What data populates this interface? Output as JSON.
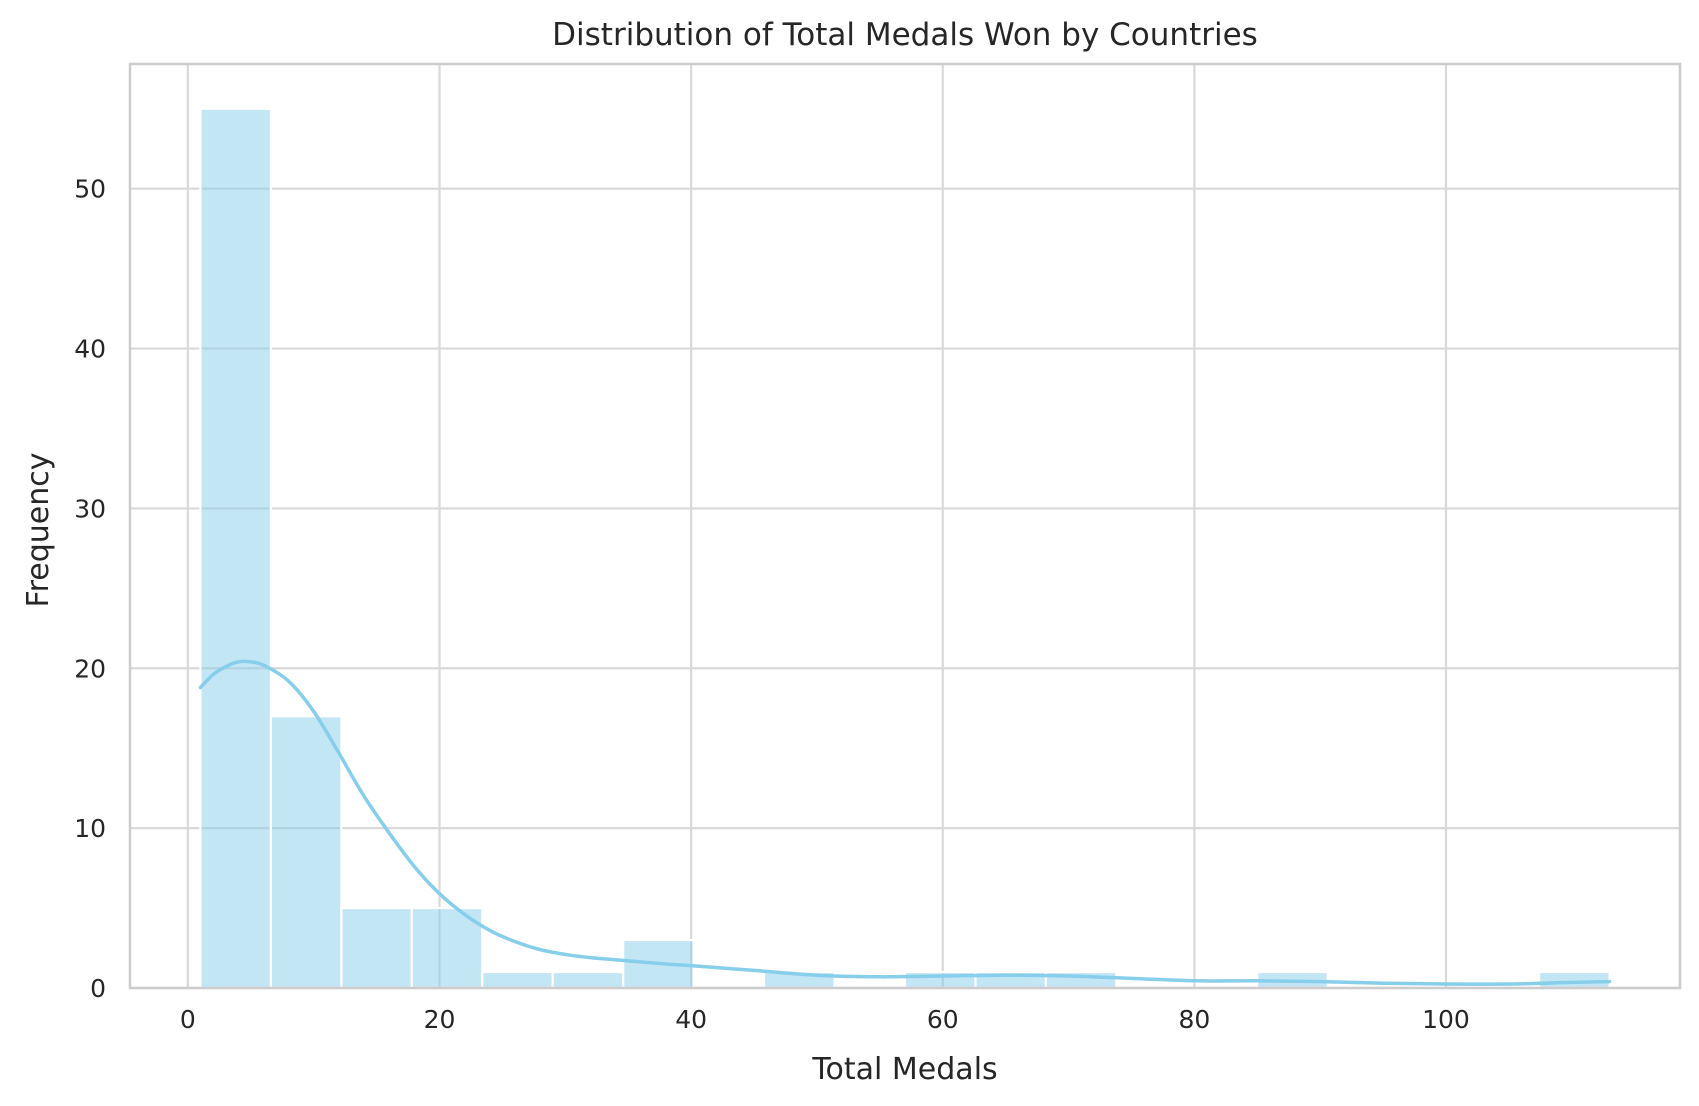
{
  "chart_data": {
    "type": "bar",
    "title": "Distribution of Total Medals Won by Countries",
    "xlabel": "Total Medals",
    "ylabel": "Frequency",
    "xlim": [
      -4.6,
      118.6
    ],
    "ylim": [
      0,
      57.8
    ],
    "xticks": [
      0,
      20,
      40,
      60,
      80,
      100
    ],
    "yticks": [
      0,
      10,
      20,
      30,
      40,
      50
    ],
    "grid": true,
    "bins": [
      {
        "x0": 1.0,
        "x1": 6.6,
        "count": 55
      },
      {
        "x0": 6.6,
        "x1": 12.2,
        "count": 17
      },
      {
        "x0": 12.2,
        "x1": 17.8,
        "count": 5
      },
      {
        "x0": 17.8,
        "x1": 23.4,
        "count": 5
      },
      {
        "x0": 23.4,
        "x1": 29.0,
        "count": 1
      },
      {
        "x0": 29.0,
        "x1": 34.6,
        "count": 1
      },
      {
        "x0": 34.6,
        "x1": 40.2,
        "count": 3
      },
      {
        "x0": 40.2,
        "x1": 45.8,
        "count": 0
      },
      {
        "x0": 45.8,
        "x1": 51.4,
        "count": 1
      },
      {
        "x0": 51.4,
        "x1": 57.0,
        "count": 0
      },
      {
        "x0": 57.0,
        "x1": 62.6,
        "count": 1
      },
      {
        "x0": 62.6,
        "x1": 68.2,
        "count": 1
      },
      {
        "x0": 68.2,
        "x1": 73.8,
        "count": 1
      },
      {
        "x0": 73.8,
        "x1": 79.4,
        "count": 0
      },
      {
        "x0": 79.4,
        "x1": 85.0,
        "count": 0
      },
      {
        "x0": 85.0,
        "x1": 90.6,
        "count": 1
      },
      {
        "x0": 90.6,
        "x1": 96.2,
        "count": 0
      },
      {
        "x0": 96.2,
        "x1": 101.8,
        "count": 0
      },
      {
        "x0": 101.8,
        "x1": 107.4,
        "count": 0
      },
      {
        "x0": 107.4,
        "x1": 113.0,
        "count": 1
      }
    ],
    "kde": {
      "x": [
        1,
        2,
        3,
        4,
        5,
        6,
        8,
        10,
        12,
        14,
        16,
        18,
        20,
        22,
        24,
        26,
        28,
        30,
        32,
        35,
        38,
        40,
        45,
        50,
        55,
        60,
        65,
        70,
        75,
        80,
        85,
        90,
        95,
        100,
        105,
        110,
        113
      ],
      "y": [
        18.8,
        19.6,
        20.1,
        20.4,
        20.4,
        20.2,
        19.2,
        17.3,
        14.7,
        12.0,
        9.7,
        7.6,
        5.9,
        4.6,
        3.6,
        2.9,
        2.4,
        2.1,
        1.9,
        1.7,
        1.5,
        1.4,
        1.1,
        0.8,
        0.7,
        0.75,
        0.8,
        0.75,
        0.6,
        0.45,
        0.45,
        0.4,
        0.3,
        0.25,
        0.25,
        0.35,
        0.4
      ]
    },
    "colors": {
      "bar_fill": "#87ceeb",
      "kde_line": "#87ceeb",
      "grid": "#d9d9d9",
      "frame": "#cccccc"
    }
  }
}
